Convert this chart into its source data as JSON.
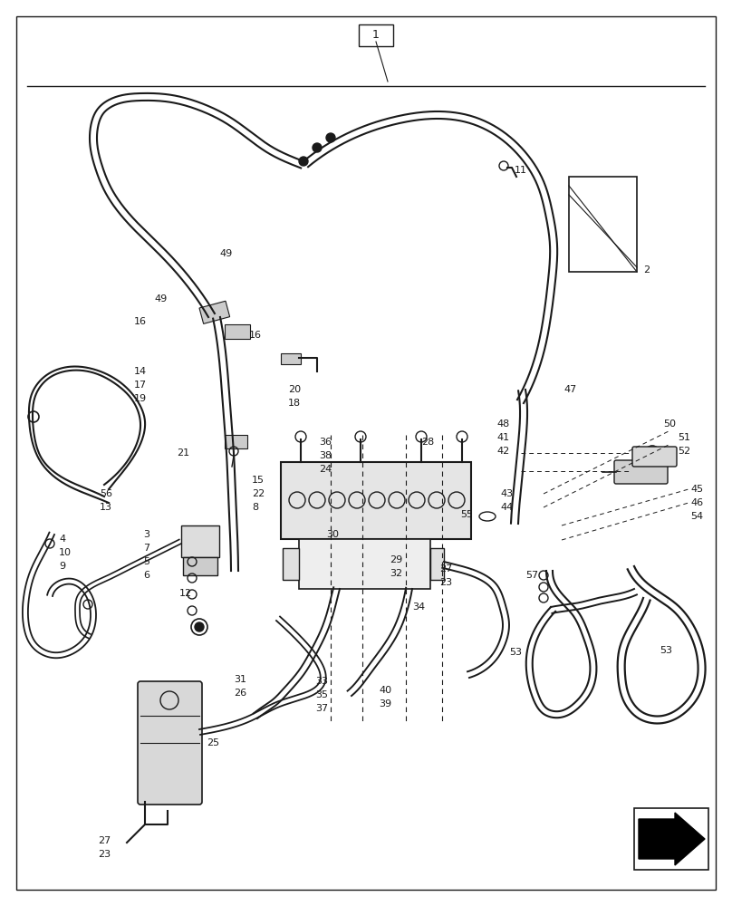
{
  "bg_color": "#ffffff",
  "line_color": "#1a1a1a",
  "fig_width": 8.08,
  "fig_height": 10.0,
  "dpi": 100
}
